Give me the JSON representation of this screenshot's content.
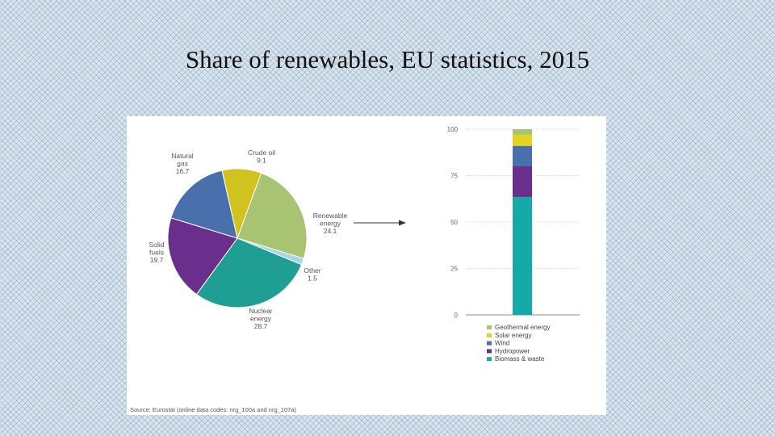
{
  "title": "Share of renewables, EU statistics, 2015",
  "source": "Source: Eurostat (online data codes: nrg_100a and nrg_107a)",
  "chart_data": [
    {
      "type": "pie",
      "slices": [
        {
          "label": "Renewable energy",
          "value": 24.1,
          "color": "#a8c473"
        },
        {
          "label": "Other",
          "value": 1.5,
          "color": "#a7d8e2"
        },
        {
          "label": "Nuclear energy",
          "value": 28.7,
          "color": "#1f9e94"
        },
        {
          "label": "Solid fuels",
          "value": 19.7,
          "color": "#6a2f8c"
        },
        {
          "label": "Natural gas",
          "value": 16.7,
          "color": "#4a6fad"
        },
        {
          "label": "Crude oil",
          "value": 9.1,
          "color": "#d1c31f"
        }
      ],
      "pie_labels": [
        {
          "name": "Renewable",
          "line2": "energy",
          "value": "24.1"
        },
        {
          "name": "Other",
          "line2": "",
          "value": "1.5"
        },
        {
          "name": "Nuclear",
          "line2": "energy",
          "value": "28.7"
        },
        {
          "name": "Solid",
          "line2": "fuels",
          "value": "19.7"
        },
        {
          "name": "Natural",
          "line2": "gas",
          "value": "16.7"
        },
        {
          "name": "Crude oil",
          "line2": "",
          "value": "9.1"
        }
      ]
    },
    {
      "type": "bar",
      "stacked": true,
      "ylim": [
        0,
        100
      ],
      "yticks": [
        0,
        25,
        50,
        75,
        100
      ],
      "grid": true,
      "legend_position": "bottom",
      "series": [
        {
          "name": "Biomass & waste",
          "value": 63.5,
          "color": "#14aaa8"
        },
        {
          "name": "Hydropower",
          "value": 16.5,
          "color": "#6a2f8c"
        },
        {
          "name": "Wind",
          "value": 11.0,
          "color": "#4a6fad"
        },
        {
          "name": "Solar energy",
          "value": 6.0,
          "color": "#e3d41c"
        },
        {
          "name": "Geothermal energy",
          "value": 3.0,
          "color": "#a8c473"
        }
      ]
    }
  ]
}
